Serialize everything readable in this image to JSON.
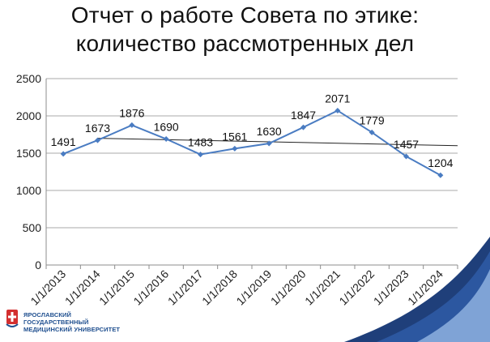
{
  "slide": {
    "title_line1": "Отчет о работе Совета по этике:",
    "title_line2": "количество рассмотренных дел"
  },
  "logo": {
    "line1": "ЯРОСЛАВСКИЙ ГОСУДАРСТВЕННЫЙ",
    "line2": "МЕДИЦИНСКИЙ УНИВЕРСИТЕТ",
    "icon": "university-emblem-icon"
  },
  "colors": {
    "series": "#4a7cc2",
    "trendline": "#222222",
    "axis": "#8c8c8c",
    "grid": "#8c8c8c",
    "swoosh_dark": "#1f3f7a",
    "swoosh_light": "#7fa3d6"
  },
  "chart_data": {
    "type": "line",
    "title": "",
    "xlabel": "",
    "ylabel": "",
    "categories": [
      "1/1/2013",
      "1/1/2014",
      "1/1/2015",
      "1/1/2016",
      "1/1/2017",
      "1/1/2018",
      "1/1/2019",
      "1/1/2020",
      "1/1/2021",
      "1/1/2022",
      "1/1/2023",
      "1/1/2024"
    ],
    "series": [
      {
        "values": [
          1491,
          1673,
          1876,
          1690,
          1483,
          1561,
          1630,
          1847,
          2071,
          1779,
          1457,
          1204
        ]
      }
    ],
    "trendline": {
      "type": "linear",
      "start": 1700,
      "end": 1600
    },
    "ylim": [
      0,
      2500
    ],
    "yticks": [
      "0",
      "500",
      "1000",
      "1500",
      "2000",
      "2500"
    ],
    "grid": true,
    "data_labels": true,
    "legend": "none"
  }
}
